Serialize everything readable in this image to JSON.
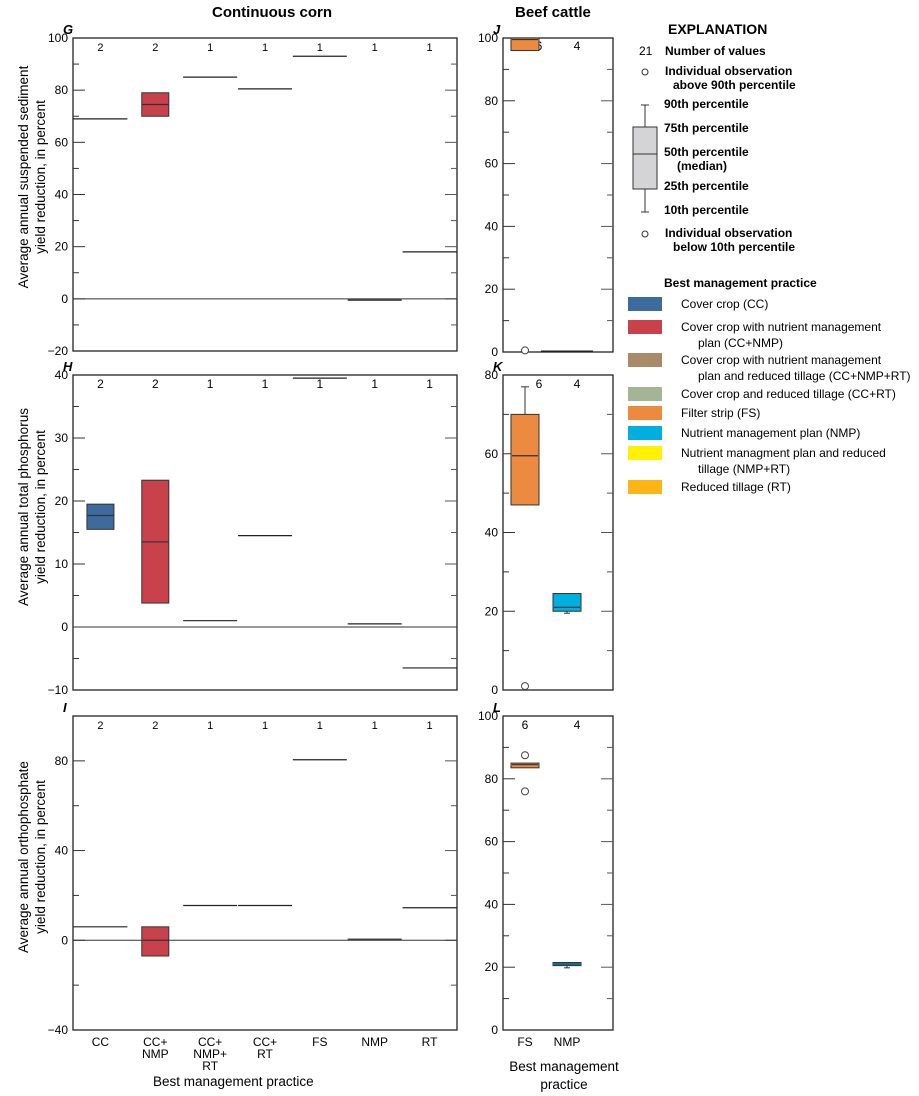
{
  "headers": {
    "corn": "Continuous corn",
    "beef": "Beef cattle"
  },
  "legend": {
    "title": "EXPLANATION",
    "n_example": "21",
    "n_label": "Number of values",
    "above_label_1": "Individual observation",
    "above_label_2": "above 90th percentile",
    "p90": "90th percentile",
    "p75": "75th percentile",
    "p50_1": "50th percentile",
    "p50_2": "(median)",
    "p25": "25th percentile",
    "p10": "10th percentile",
    "below_label_1": "Individual observation",
    "below_label_2": "below 10th percentile",
    "bmp_title": "Best management practice",
    "items": [
      {
        "label1": "Cover crop (CC)",
        "label2": "",
        "color": "#3d6b9e"
      },
      {
        "label1": "Cover crop with nutrient management",
        "label2": "plan (CC+NMP)",
        "color": "#c9414b"
      },
      {
        "label1": "Cover crop with nutrient management",
        "label2": "plan and reduced tillage (CC+NMP+RT)",
        "color": "#a98b6a"
      },
      {
        "label1": "Cover crop and reduced tillage (CC+RT)",
        "label2": "",
        "color": "#a3b593"
      },
      {
        "label1": "Filter strip (FS)",
        "label2": "",
        "color": "#ec8b3f"
      },
      {
        "label1": "Nutrient management plan (NMP)",
        "label2": "",
        "color": "#00aee0"
      },
      {
        "label1": "Nutrient managment plan and reduced",
        "label2": "tillage (NMP+RT)",
        "color": "#fff200"
      },
      {
        "label1": "Reduced tillage (RT)",
        "label2": "",
        "color": "#fbb516"
      }
    ]
  },
  "xlabels": {
    "corn": "Best management practice",
    "beef_1": "Best management",
    "beef_2": "practice"
  },
  "chart_data": [
    {
      "type": "box",
      "panel": "G",
      "ylabel_1": "Average annual suspended sediment",
      "ylabel_2": "yield reduction, in percent",
      "ylim": [
        -20,
        100
      ],
      "major": 20,
      "minor": 10,
      "categories": [
        "CC",
        "CC+ NMP",
        "CC+ NMP+ RT",
        "CC+ RT",
        "FS",
        "NMP",
        "RT"
      ],
      "counts": [
        "2",
        "2",
        "1",
        "1",
        "1",
        "1",
        "1"
      ],
      "boxes": [
        {
          "single": 69
        },
        {
          "q1": 70,
          "med": 74.5,
          "q3": 79,
          "color": "#c9414b"
        },
        {
          "single": 85
        },
        {
          "single": 80.5
        },
        {
          "single": 93
        },
        {
          "single": -0.5
        },
        {
          "single": 18
        }
      ]
    },
    {
      "type": "box",
      "panel": "H",
      "ylabel_1": "Average annual total phosphorus",
      "ylabel_2": "yield reduction, in percent",
      "ylim": [
        -10,
        40
      ],
      "major": 10,
      "minor": 5,
      "categories": [
        "CC",
        "CC+ NMP",
        "CC+ NMP+ RT",
        "CC+ RT",
        "FS",
        "NMP",
        "RT"
      ],
      "counts": [
        "2",
        "2",
        "1",
        "1",
        "1",
        "1",
        "1"
      ],
      "boxes": [
        {
          "q1": 15.5,
          "med": 17.7,
          "q3": 19.5,
          "color": "#3d6b9e"
        },
        {
          "q1": 3.8,
          "med": 13.5,
          "q3": 23.3,
          "color": "#c9414b"
        },
        {
          "single": 1
        },
        {
          "single": 14.5
        },
        {
          "single": 39.5
        },
        {
          "single": 0.5
        },
        {
          "single": -6.5
        }
      ]
    },
    {
      "type": "box",
      "panel": "I",
      "ylabel_1": "Average annual orthophosphate",
      "ylabel_2": "yield reduction, in percent",
      "ylim": [
        -40,
        100
      ],
      "major": 40,
      "minor": 20,
      "categories": [
        "CC",
        "CC+ NMP",
        "CC+ NMP+ RT",
        "CC+ RT",
        "FS",
        "NMP",
        "RT"
      ],
      "counts": [
        "2",
        "2",
        "1",
        "1",
        "1",
        "1",
        "1"
      ],
      "boxes": [
        {
          "single": 6
        },
        {
          "q1": -7,
          "med": 0,
          "q3": 6,
          "color": "#c9414b"
        },
        {
          "single": 15.5
        },
        {
          "single": 15.5
        },
        {
          "single": 80.5
        },
        {
          "single": 0.5
        },
        {
          "single": 14.5
        }
      ]
    },
    {
      "type": "box",
      "panel": "J",
      "ylim": [
        0,
        100
      ],
      "major": 20,
      "minor": 10,
      "categories": [
        "FS",
        "NMP"
      ],
      "counts": [
        "6",
        "4"
      ],
      "boxes": [
        {
          "q1": 96,
          "med": 99.5,
          "q3": 100,
          "color": "#ec8b3f",
          "outliers": [
            0.5
          ]
        },
        {
          "single": 0.3
        }
      ]
    },
    {
      "type": "box",
      "panel": "K",
      "ylim": [
        0,
        80
      ],
      "major": 20,
      "minor": 10,
      "categories": [
        "FS",
        "NMP"
      ],
      "counts": [
        "6",
        "4"
      ],
      "boxes": [
        {
          "q1": 47,
          "med": 59.5,
          "q3": 70,
          "p90": 77,
          "color": "#ec8b3f",
          "outliers": [
            1
          ]
        },
        {
          "q1": 20,
          "med": 21,
          "q3": 24.5,
          "p10": 19.5,
          "color": "#00aee0"
        }
      ]
    },
    {
      "type": "box",
      "panel": "L",
      "ylim": [
        0,
        100
      ],
      "major": 20,
      "minor": 10,
      "categories": [
        "FS",
        "NMP"
      ],
      "counts": [
        "6",
        "4"
      ],
      "boxes": [
        {
          "q1": 83.5,
          "med": 84.5,
          "q3": 85,
          "color": "#ec8b3f",
          "outliers": [
            87.5,
            76
          ]
        },
        {
          "q1": 20.5,
          "med": 21,
          "q3": 21.5,
          "p10": 19.8,
          "color": "#00aee0"
        }
      ]
    }
  ]
}
